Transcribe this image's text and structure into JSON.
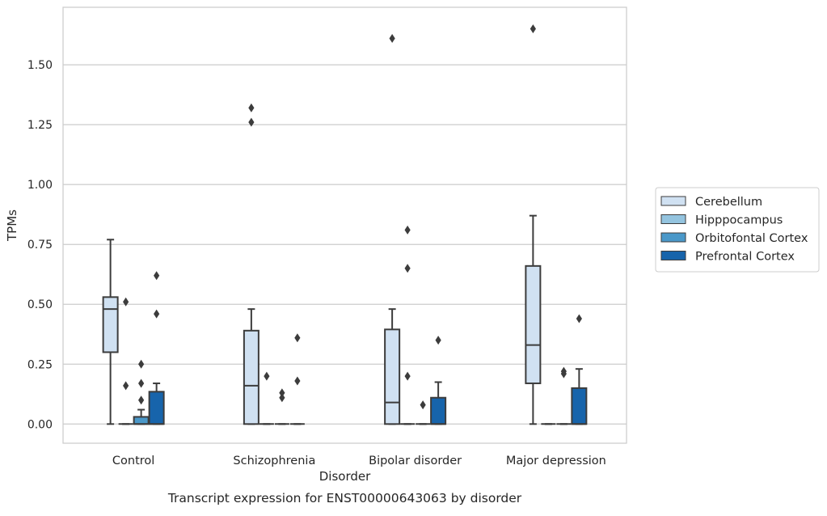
{
  "chart_data": {
    "type": "box",
    "xlabel": "Disorder",
    "ylabel": "TPMs",
    "caption": "Transcript expression for ENST00000643063 by disorder",
    "ylim": [
      -0.08,
      1.74
    ],
    "yticks": [
      0.0,
      0.25,
      0.5,
      0.75,
      1.0,
      1.25,
      1.5
    ],
    "ytick_labels": [
      "0.00",
      "0.25",
      "0.50",
      "0.75",
      "1.00",
      "1.25",
      "1.50"
    ],
    "categories": [
      "Control",
      "Schizophrenia",
      "Bipolar disorder",
      "Major depression"
    ],
    "grid": "horizontal",
    "legend_position": "right",
    "series": [
      {
        "name": "Cerebellum",
        "color": "#d0e1f2",
        "boxes": [
          {
            "category": "Control",
            "whisker_low": 0.0,
            "q1": 0.3,
            "median": 0.48,
            "q3": 0.53,
            "whisker_high": 0.77,
            "outliers": []
          },
          {
            "category": "Schizophrenia",
            "whisker_low": 0.0,
            "q1": 0.0,
            "median": 0.16,
            "q3": 0.39,
            "whisker_high": 0.48,
            "outliers": [
              1.26,
              1.32
            ]
          },
          {
            "category": "Bipolar disorder",
            "whisker_low": 0.0,
            "q1": 0.0,
            "median": 0.09,
            "q3": 0.395,
            "whisker_high": 0.48,
            "outliers": [
              1.61
            ]
          },
          {
            "category": "Major depression",
            "whisker_low": 0.0,
            "q1": 0.17,
            "median": 0.33,
            "q3": 0.66,
            "whisker_high": 0.87,
            "outliers": [
              1.65
            ]
          }
        ]
      },
      {
        "name": "Hipppocampus",
        "color": "#94c4df",
        "boxes": [
          {
            "category": "Control",
            "whisker_low": 0.0,
            "q1": 0.0,
            "median": 0.0,
            "q3": 0.0,
            "whisker_high": 0.0,
            "outliers": [
              0.16,
              0.51
            ]
          },
          {
            "category": "Schizophrenia",
            "whisker_low": 0.0,
            "q1": 0.0,
            "median": 0.0,
            "q3": 0.0,
            "whisker_high": 0.0,
            "outliers": [
              0.2
            ]
          },
          {
            "category": "Bipolar disorder",
            "whisker_low": 0.0,
            "q1": 0.0,
            "median": 0.0,
            "q3": 0.0,
            "whisker_high": 0.0,
            "outliers": [
              0.2,
              0.65,
              0.81
            ]
          },
          {
            "category": "Major depression",
            "whisker_low": 0.0,
            "q1": 0.0,
            "median": 0.0,
            "q3": 0.0,
            "whisker_high": 0.0,
            "outliers": []
          }
        ]
      },
      {
        "name": "Orbitofontal Cortex",
        "color": "#4a98c9",
        "boxes": [
          {
            "category": "Control",
            "whisker_low": 0.0,
            "q1": 0.0,
            "median": 0.0,
            "q3": 0.03,
            "whisker_high": 0.06,
            "outliers": [
              0.1,
              0.17,
              0.25
            ]
          },
          {
            "category": "Schizophrenia",
            "whisker_low": 0.0,
            "q1": 0.0,
            "median": 0.0,
            "q3": 0.0,
            "whisker_high": 0.0,
            "outliers": [
              0.11,
              0.13
            ]
          },
          {
            "category": "Bipolar disorder",
            "whisker_low": 0.0,
            "q1": 0.0,
            "median": 0.0,
            "q3": 0.0,
            "whisker_high": 0.0,
            "outliers": [
              0.08
            ]
          },
          {
            "category": "Major depression",
            "whisker_low": 0.0,
            "q1": 0.0,
            "median": 0.0,
            "q3": 0.0,
            "whisker_high": 0.0,
            "outliers": [
              0.21,
              0.22
            ]
          }
        ]
      },
      {
        "name": "Prefrontal Cortex",
        "color": "#1764ab",
        "boxes": [
          {
            "category": "Control",
            "whisker_low": 0.0,
            "q1": 0.0,
            "median": 0.0,
            "q3": 0.135,
            "whisker_high": 0.17,
            "outliers": [
              0.46,
              0.62
            ]
          },
          {
            "category": "Schizophrenia",
            "whisker_low": 0.0,
            "q1": 0.0,
            "median": 0.0,
            "q3": 0.0,
            "whisker_high": 0.0,
            "outliers": [
              0.18,
              0.36
            ]
          },
          {
            "category": "Bipolar disorder",
            "whisker_low": 0.0,
            "q1": 0.0,
            "median": 0.0,
            "q3": 0.11,
            "whisker_high": 0.175,
            "outliers": [
              0.35
            ]
          },
          {
            "category": "Major depression",
            "whisker_low": 0.0,
            "q1": 0.0,
            "median": 0.0,
            "q3": 0.15,
            "whisker_high": 0.23,
            "outliers": [
              0.44
            ]
          }
        ]
      }
    ]
  }
}
